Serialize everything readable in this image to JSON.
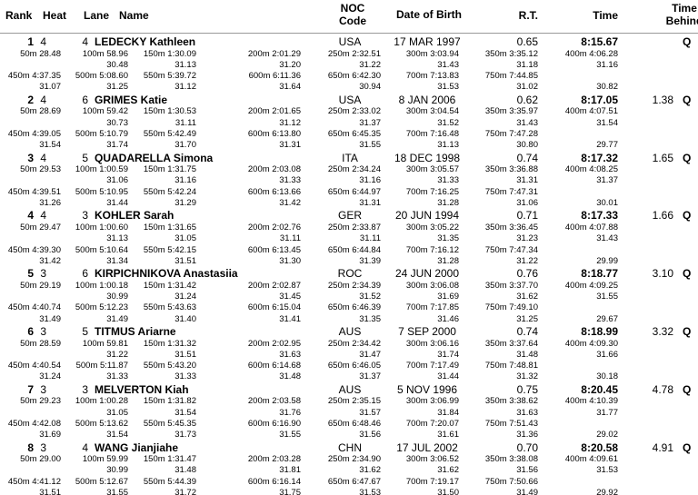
{
  "headers": {
    "rank": "Rank",
    "heat": "Heat",
    "lane": "Lane",
    "name": "Name",
    "noc1": "NOC",
    "noc2": "Code",
    "dob": "Date of Birth",
    "rt": "R.T.",
    "time": "Time",
    "behind1": "Time",
    "behind2": "Behind"
  },
  "athletes": [
    {
      "rank": "1",
      "heat": "4",
      "lane": "4",
      "name": "LEDECKY Kathleen",
      "noc": "USA",
      "dob": "17 MAR 1997",
      "rt": "0.65",
      "time": "8:15.67",
      "behind": "",
      "q": "Q",
      "splits1": [
        "50m 28.48",
        "100m 58.96",
        "150m 1:30.09",
        "200m 2:01.29",
        "250m 2:32.51",
        "300m 3:03.94",
        "350m 3:35.12",
        "400m 4:06.28"
      ],
      "diffs1": [
        "",
        "30.48",
        "31.13",
        "31.20",
        "31.22",
        "31.43",
        "31.18",
        "31.16"
      ],
      "splits2": [
        "450m 4:37.35",
        "500m 5:08.60",
        "550m 5:39.72",
        "600m 6:11.36",
        "650m 6:42.30",
        "700m 7:13.83",
        "750m 7:44.85",
        ""
      ],
      "diffs2": [
        "31.07",
        "31.25",
        "31.12",
        "31.64",
        "30.94",
        "31.53",
        "31.02",
        "30.82"
      ]
    },
    {
      "rank": "2",
      "heat": "4",
      "lane": "6",
      "name": "GRIMES Katie",
      "noc": "USA",
      "dob": "8 JAN 2006",
      "rt": "0.62",
      "time": "8:17.05",
      "behind": "1.38",
      "q": "Q",
      "splits1": [
        "50m 28.69",
        "100m 59.42",
        "150m 1:30.53",
        "200m 2:01.65",
        "250m 2:33.02",
        "300m 3:04.54",
        "350m 3:35.97",
        "400m 4:07.51"
      ],
      "diffs1": [
        "",
        "30.73",
        "31.11",
        "31.12",
        "31.37",
        "31.52",
        "31.43",
        "31.54"
      ],
      "splits2": [
        "450m 4:39.05",
        "500m 5:10.79",
        "550m 5:42.49",
        "600m 6:13.80",
        "650m 6:45.35",
        "700m 7:16.48",
        "750m 7:47.28",
        ""
      ],
      "diffs2": [
        "31.54",
        "31.74",
        "31.70",
        "31.31",
        "31.55",
        "31.13",
        "30.80",
        "29.77"
      ]
    },
    {
      "rank": "3",
      "heat": "4",
      "lane": "5",
      "name": "QUADARELLA Simona",
      "noc": "ITA",
      "dob": "18 DEC 1998",
      "rt": "0.74",
      "time": "8:17.32",
      "behind": "1.65",
      "q": "Q",
      "splits1": [
        "50m 29.53",
        "100m 1:00.59",
        "150m 1:31.75",
        "200m 2:03.08",
        "250m 2:34.24",
        "300m 3:05.57",
        "350m 3:36.88",
        "400m 4:08.25"
      ],
      "diffs1": [
        "",
        "31.06",
        "31.16",
        "31.33",
        "31.16",
        "31.33",
        "31.31",
        "31.37"
      ],
      "splits2": [
        "450m 4:39.51",
        "500m 5:10.95",
        "550m 5:42.24",
        "600m 6:13.66",
        "650m 6:44.97",
        "700m 7:16.25",
        "750m 7:47.31",
        ""
      ],
      "diffs2": [
        "31.26",
        "31.44",
        "31.29",
        "31.42",
        "31.31",
        "31.28",
        "31.06",
        "30.01"
      ]
    },
    {
      "rank": "4",
      "heat": "4",
      "lane": "3",
      "name": "KOHLER Sarah",
      "noc": "GER",
      "dob": "20 JUN 1994",
      "rt": "0.71",
      "time": "8:17.33",
      "behind": "1.66",
      "q": "Q",
      "splits1": [
        "50m 29.47",
        "100m 1:00.60",
        "150m 1:31.65",
        "200m 2:02.76",
        "250m 2:33.87",
        "300m 3:05.22",
        "350m 3:36.45",
        "400m 4:07.88"
      ],
      "diffs1": [
        "",
        "31.13",
        "31.05",
        "31.11",
        "31.11",
        "31.35",
        "31.23",
        "31.43"
      ],
      "splits2": [
        "450m 4:39.30",
        "500m 5:10.64",
        "550m 5:42.15",
        "600m 6:13.45",
        "650m 6:44.84",
        "700m 7:16.12",
        "750m 7:47.34",
        ""
      ],
      "diffs2": [
        "31.42",
        "31.34",
        "31.51",
        "31.30",
        "31.39",
        "31.28",
        "31.22",
        "29.99"
      ]
    },
    {
      "rank": "5",
      "heat": "3",
      "lane": "6",
      "name": "KIRPICHNIKOVA Anastasiia",
      "noc": "ROC",
      "dob": "24 JUN 2000",
      "rt": "0.76",
      "time": "8:18.77",
      "behind": "3.10",
      "q": "Q",
      "splits1": [
        "50m 29.19",
        "100m 1:00.18",
        "150m 1:31.42",
        "200m 2:02.87",
        "250m 2:34.39",
        "300m 3:06.08",
        "350m 3:37.70",
        "400m 4:09.25"
      ],
      "diffs1": [
        "",
        "30.99",
        "31.24",
        "31.45",
        "31.52",
        "31.69",
        "31.62",
        "31.55"
      ],
      "splits2": [
        "450m 4:40.74",
        "500m 5:12.23",
        "550m 5:43.63",
        "600m 6:15.04",
        "650m 6:46.39",
        "700m 7:17.85",
        "750m 7:49.10",
        ""
      ],
      "diffs2": [
        "31.49",
        "31.49",
        "31.40",
        "31.41",
        "31.35",
        "31.46",
        "31.25",
        "29.67"
      ]
    },
    {
      "rank": "6",
      "heat": "3",
      "lane": "5",
      "name": "TITMUS Ariarne",
      "noc": "AUS",
      "dob": "7 SEP 2000",
      "rt": "0.74",
      "time": "8:18.99",
      "behind": "3.32",
      "q": "Q",
      "splits1": [
        "50m 28.59",
        "100m 59.81",
        "150m 1:31.32",
        "200m 2:02.95",
        "250m 2:34.42",
        "300m 3:06.16",
        "350m 3:37.64",
        "400m 4:09.30"
      ],
      "diffs1": [
        "",
        "31.22",
        "31.51",
        "31.63",
        "31.47",
        "31.74",
        "31.48",
        "31.66"
      ],
      "splits2": [
        "450m 4:40.54",
        "500m 5:11.87",
        "550m 5:43.20",
        "600m 6:14.68",
        "650m 6:46.05",
        "700m 7:17.49",
        "750m 7:48.81",
        ""
      ],
      "diffs2": [
        "31.24",
        "31.33",
        "31.33",
        "31.48",
        "31.37",
        "31.44",
        "31.32",
        "30.18"
      ]
    },
    {
      "rank": "7",
      "heat": "3",
      "lane": "3",
      "name": "MELVERTON Kiah",
      "noc": "AUS",
      "dob": "5 NOV 1996",
      "rt": "0.75",
      "time": "8:20.45",
      "behind": "4.78",
      "q": "Q",
      "splits1": [
        "50m 29.23",
        "100m 1:00.28",
        "150m 1:31.82",
        "200m 2:03.58",
        "250m 2:35.15",
        "300m 3:06.99",
        "350m 3:38.62",
        "400m 4:10.39"
      ],
      "diffs1": [
        "",
        "31.05",
        "31.54",
        "31.76",
        "31.57",
        "31.84",
        "31.63",
        "31.77"
      ],
      "splits2": [
        "450m 4:42.08",
        "500m 5:13.62",
        "550m 5:45.35",
        "600m 6:16.90",
        "650m 6:48.46",
        "700m 7:20.07",
        "750m 7:51.43",
        ""
      ],
      "diffs2": [
        "31.69",
        "31.54",
        "31.73",
        "31.55",
        "31.56",
        "31.61",
        "31.36",
        "29.02"
      ]
    },
    {
      "rank": "8",
      "heat": "3",
      "lane": "4",
      "name": "WANG Jianjiahe",
      "noc": "CHN",
      "dob": "17 JUL 2002",
      "rt": "0.70",
      "time": "8:20.58",
      "behind": "4.91",
      "q": "Q",
      "splits1": [
        "50m 29.00",
        "100m 59.99",
        "150m 1:31.47",
        "200m 2:03.28",
        "250m 2:34.90",
        "300m 3:06.52",
        "350m 3:38.08",
        "400m 4:09.61"
      ],
      "diffs1": [
        "",
        "30.99",
        "31.48",
        "31.81",
        "31.62",
        "31.62",
        "31.56",
        "31.53"
      ],
      "splits2": [
        "450m 4:41.12",
        "500m 5:12.67",
        "550m 5:44.39",
        "600m 6:16.14",
        "650m 6:47.67",
        "700m 7:19.17",
        "750m 7:50.66",
        ""
      ],
      "diffs2": [
        "31.51",
        "31.55",
        "31.72",
        "31.75",
        "31.53",
        "31.50",
        "31.49",
        "29.92"
      ]
    }
  ]
}
